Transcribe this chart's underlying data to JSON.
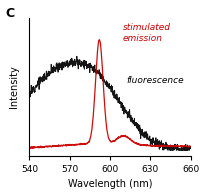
{
  "title": "C",
  "xlabel": "Wavelength (nm)",
  "ylabel": "Intensity",
  "xlim": [
    540,
    660
  ],
  "x_ticks": [
    540,
    570,
    600,
    630,
    660
  ],
  "fluorescence_label": "fluorescence",
  "stimulated_label": "stimulated\nemission",
  "fluorescence_color": "#000000",
  "stimulated_color": "#cc0000",
  "background_color": "#ffffff",
  "peak_wavelength": 592,
  "fig_width": 2.05,
  "fig_height": 1.95
}
